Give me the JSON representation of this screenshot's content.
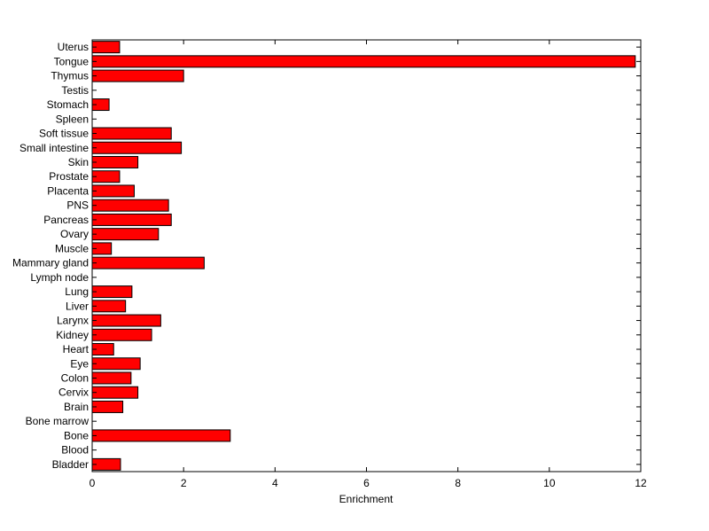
{
  "chart_data": {
    "type": "bar",
    "orientation": "horizontal",
    "title": "",
    "xlabel": "Enrichment",
    "ylabel": "",
    "xlim": [
      0,
      12
    ],
    "xticks": [
      0,
      2,
      4,
      6,
      8,
      10,
      12
    ],
    "grid": false,
    "legend": "none",
    "bar_color": "#ff0000",
    "edge_color": "#000000",
    "categories": [
      "Bladder",
      "Blood",
      "Bone",
      "Bone marrow",
      "Brain",
      "Cervix",
      "Colon",
      "Eye",
      "Heart",
      "Kidney",
      "Larynx",
      "Liver",
      "Lung",
      "Lymph node",
      "Mammary gland",
      "Muscle",
      "Ovary",
      "Pancreas",
      "PNS",
      "Placenta",
      "Prostate",
      "Skin",
      "Small intestine",
      "Soft tissue",
      "Spleen",
      "Stomach",
      "Testis",
      "Thymus",
      "Tongue",
      "Uterus"
    ],
    "values": [
      0.62,
      0,
      3.02,
      0,
      0.67,
      1.0,
      0.85,
      1.05,
      0.47,
      1.3,
      1.5,
      0.73,
      0.87,
      0,
      2.45,
      0.42,
      1.45,
      1.73,
      1.67,
      0.92,
      0.6,
      1.0,
      1.95,
      1.73,
      0,
      0.37,
      0,
      2.0,
      11.88,
      0.6
    ]
  }
}
